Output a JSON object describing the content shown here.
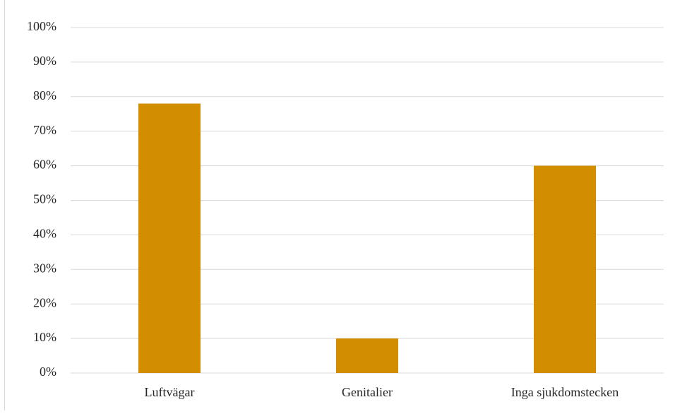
{
  "chart_data": {
    "type": "bar",
    "title": "",
    "xlabel": "",
    "ylabel": "",
    "categories": [
      "Luftvägar",
      "Genitalier",
      "Inga sjukdomstecken"
    ],
    "values": [
      78,
      10,
      60
    ],
    "ylim": [
      0,
      100
    ],
    "yticks": [
      0,
      10,
      20,
      30,
      40,
      50,
      60,
      70,
      80,
      90,
      100
    ],
    "ytick_labels": [
      "0%",
      "10%",
      "20%",
      "30%",
      "40%",
      "50%",
      "60%",
      "70%",
      "80%",
      "90%",
      "100%"
    ],
    "grid": true,
    "legend": "none",
    "bar_color": "#D38D00",
    "grid_color": "#D9D9D9"
  }
}
